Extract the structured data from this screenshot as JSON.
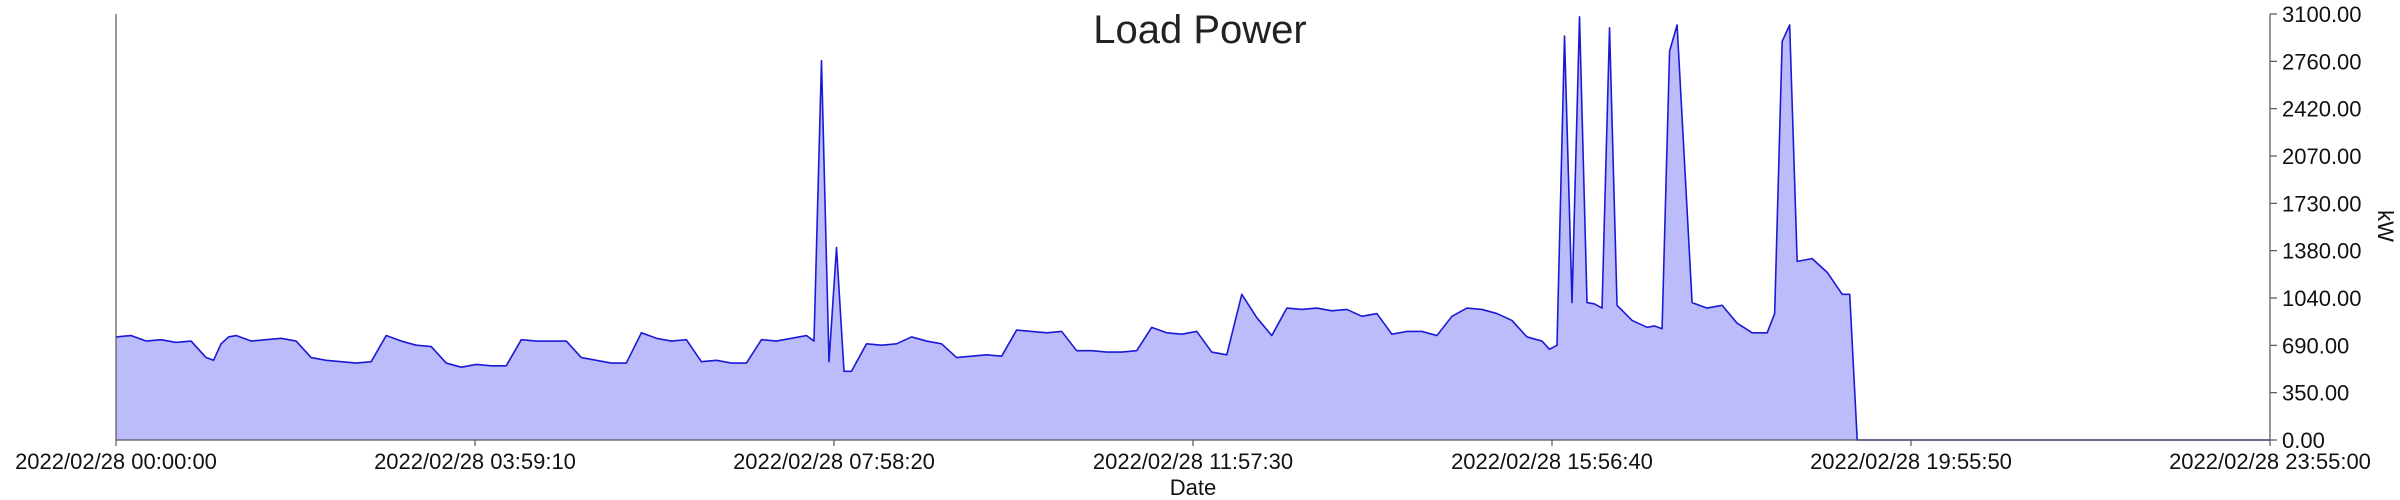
{
  "chart_data": {
    "type": "area",
    "title": "Load Power",
    "xlabel": "Date",
    "ylabel": "kW",
    "ylim": [
      0,
      3100
    ],
    "y_ticks": [
      "0.00",
      "350.00",
      "690.00",
      "1040.00",
      "1380.00",
      "1730.00",
      "2070.00",
      "2420.00",
      "2760.00",
      "3100.00"
    ],
    "x_ticks": [
      "2022/02/28 00:00:00",
      "2022/02/28 03:59:10",
      "2022/02/28 07:58:20",
      "2022/02/28 11:57:30",
      "2022/02/28 15:56:40",
      "2022/02/28 19:55:50",
      "2022/02/28 23:55:00"
    ],
    "x_range_minutes": [
      0,
      1435
    ],
    "grid": false,
    "colors": {
      "line": "#1a1ad6",
      "fill": "#bcbcfb"
    },
    "series": [
      {
        "x_minutes": [
          0,
          10,
          20,
          30,
          40,
          50,
          60,
          65,
          70,
          75,
          80,
          90,
          100,
          110,
          120,
          130,
          140,
          150,
          160,
          170,
          180,
          190,
          200,
          210,
          220,
          230,
          240,
          250,
          260,
          270,
          280,
          290,
          300,
          310,
          320,
          330,
          340,
          350,
          360,
          370,
          380,
          390,
          400,
          410,
          420,
          430,
          440,
          450,
          460,
          465,
          470,
          475,
          480,
          485,
          490,
          500,
          510,
          520,
          530,
          540,
          550,
          560,
          570,
          580,
          590,
          600,
          610,
          620,
          630,
          640,
          650,
          660,
          670,
          680,
          690,
          700,
          710,
          720,
          730,
          740,
          750,
          760,
          770,
          780,
          790,
          800,
          810,
          820,
          830,
          840,
          850,
          860,
          870,
          880,
          890,
          900,
          910,
          920,
          930,
          940,
          950,
          955,
          960,
          965,
          970,
          975,
          980,
          985,
          990,
          995,
          1000,
          1010,
          1020,
          1025,
          1030,
          1035,
          1040,
          1050,
          1060,
          1070,
          1080,
          1090,
          1100,
          1105,
          1110,
          1115,
          1120,
          1130,
          1140,
          1150,
          1155,
          1160,
          1435
        ],
        "values": [
          750,
          760,
          720,
          730,
          710,
          720,
          600,
          580,
          700,
          750,
          760,
          720,
          730,
          740,
          720,
          600,
          580,
          570,
          560,
          570,
          760,
          720,
          690,
          680,
          560,
          530,
          550,
          540,
          540,
          730,
          720,
          720,
          720,
          600,
          580,
          560,
          560,
          780,
          740,
          720,
          730,
          570,
          580,
          560,
          560,
          730,
          720,
          740,
          760,
          720,
          2760,
          570,
          1400,
          500,
          500,
          700,
          690,
          700,
          750,
          720,
          700,
          600,
          610,
          620,
          610,
          800,
          790,
          780,
          790,
          650,
          650,
          640,
          640,
          650,
          820,
          780,
          770,
          790,
          640,
          620,
          1060,
          890,
          760,
          960,
          950,
          960,
          940,
          950,
          900,
          920,
          770,
          790,
          790,
          760,
          900,
          960,
          950,
          920,
          870,
          750,
          720,
          660,
          690,
          2940,
          1000,
          3080,
          1000,
          990,
          960,
          3000,
          980,
          870,
          820,
          830,
          810,
          2830,
          3020,
          1000,
          960,
          980,
          850,
          780,
          780,
          920,
          2900,
          3020,
          1300,
          1320,
          1220,
          1060,
          1060,
          0,
          0
        ]
      }
    ]
  }
}
